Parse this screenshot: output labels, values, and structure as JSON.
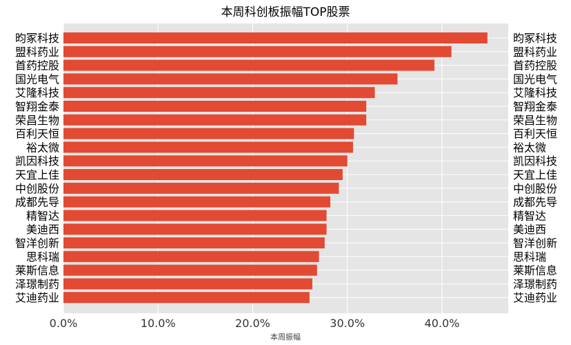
{
  "chart_data": {
    "type": "bar",
    "orientation": "horizontal",
    "title": "本周科创板振幅TOP股票",
    "xlabel": "本周振幅",
    "ylabel": "",
    "xlim": [
      0,
      0.47
    ],
    "xticks": [
      0,
      0.1,
      0.2,
      0.3,
      0.4
    ],
    "xtick_labels": [
      "0.0%",
      "10.0%",
      "20.0%",
      "30.0%",
      "40.0%"
    ],
    "grid": true,
    "bar_color": "#E24A33",
    "background_color": "#E5E5E5",
    "categories": [
      "昀冢科技",
      "盟科药业",
      "首药控股",
      "国光电气",
      "艾隆科技",
      "智翔金泰",
      "荣昌生物",
      "百利天恒",
      "裕太微",
      "凯因科技",
      "天宜上佳",
      "中创股份",
      "成都先导",
      "精智达",
      "美迪西",
      "智洋创新",
      "思科瑞",
      "莱斯信息",
      "泽璟制药",
      "艾迪药业"
    ],
    "values": [
      0.448,
      0.41,
      0.392,
      0.353,
      0.329,
      0.32,
      0.32,
      0.307,
      0.306,
      0.3,
      0.295,
      0.291,
      0.282,
      0.278,
      0.278,
      0.276,
      0.27,
      0.268,
      0.263,
      0.26
    ]
  }
}
